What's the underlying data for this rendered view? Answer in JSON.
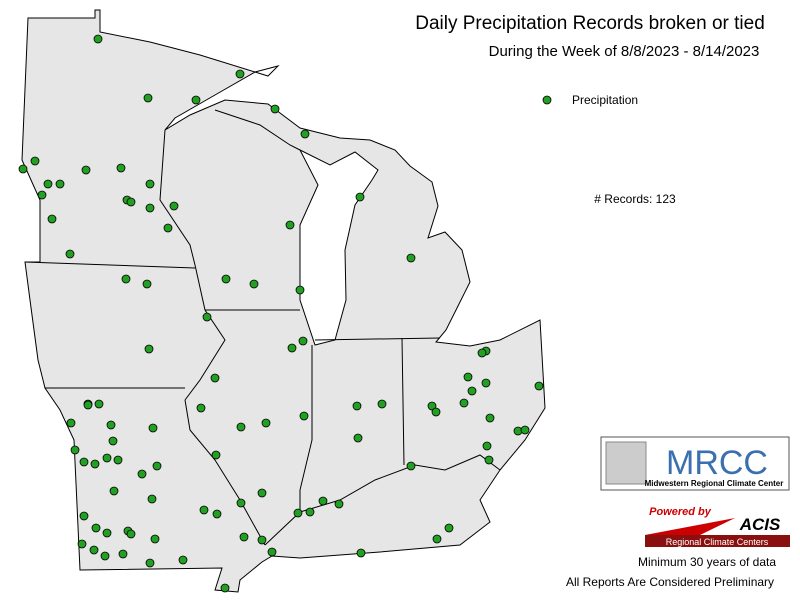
{
  "header": {
    "title": "Daily Precipitation Records broken or tied",
    "subtitle": "During the Week of 8/8/2023 - 8/14/2023"
  },
  "legend": {
    "label": "Precipitation"
  },
  "summary": "# Records: 123",
  "logos": {
    "mrcc": "MRCC",
    "mrcc_name": "Midwestern Regional Climate Center",
    "powered_by": "Powered by",
    "acis": "ACIS",
    "acis_name": "Regional Climate Centers"
  },
  "notes": [
    "Minimum 30 years of data",
    "All Reports Are Considered Preliminary"
  ]
}
